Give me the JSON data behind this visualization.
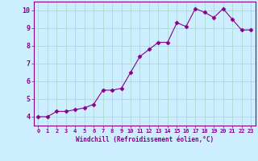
{
  "x": [
    0,
    1,
    2,
    3,
    4,
    5,
    6,
    7,
    8,
    9,
    10,
    11,
    12,
    13,
    14,
    15,
    16,
    17,
    18,
    19,
    20,
    21,
    22,
    23
  ],
  "y": [
    4.0,
    4.0,
    4.3,
    4.3,
    4.4,
    4.5,
    4.7,
    5.5,
    5.5,
    5.6,
    6.5,
    7.4,
    7.8,
    8.2,
    8.2,
    9.3,
    9.1,
    10.1,
    9.9,
    9.6,
    10.1,
    9.5,
    8.9,
    8.9
  ],
  "line_color": "#880088",
  "marker": "D",
  "marker_size": 2.5,
  "bg_color": "#cceeff",
  "grid_color": "#aaddcc",
  "xlabel": "Windchill (Refroidissement éolien,°C)",
  "xlabel_color": "#880088",
  "tick_color": "#880088",
  "spine_color": "#880088",
  "ylim": [
    3.5,
    10.5
  ],
  "xlim": [
    -0.5,
    23.5
  ],
  "yticks": [
    4,
    5,
    6,
    7,
    8,
    9,
    10
  ],
  "xticks": [
    0,
    1,
    2,
    3,
    4,
    5,
    6,
    7,
    8,
    9,
    10,
    11,
    12,
    13,
    14,
    15,
    16,
    17,
    18,
    19,
    20,
    21,
    22,
    23
  ],
  "xtick_labels": [
    "0",
    "1",
    "2",
    "3",
    "4",
    "5",
    "6",
    "7",
    "8",
    "9",
    "10",
    "11",
    "12",
    "13",
    "14",
    "15",
    "16",
    "17",
    "18",
    "19",
    "20",
    "21",
    "22",
    "23"
  ]
}
